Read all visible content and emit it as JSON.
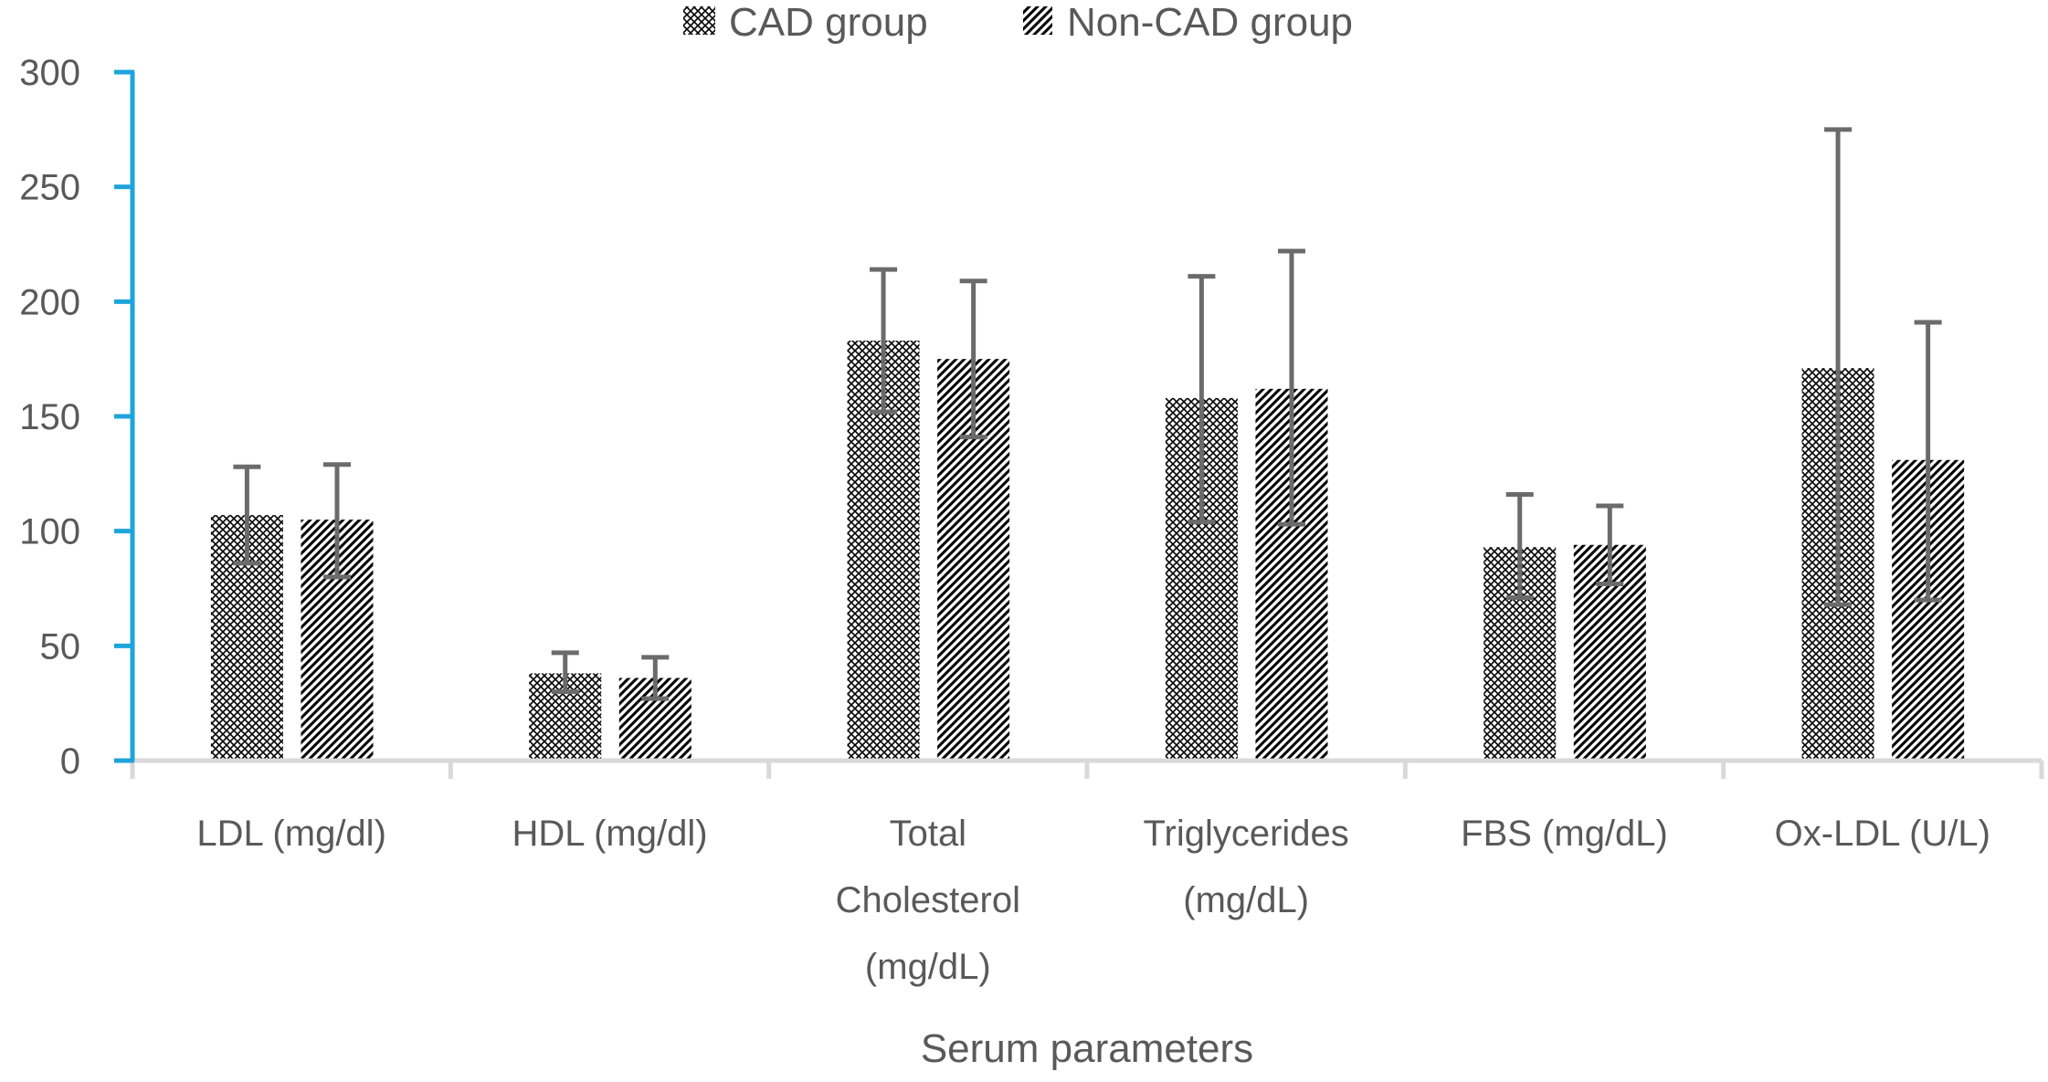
{
  "chart_data": {
    "type": "bar",
    "title": "",
    "xlabel": "Serum parameters",
    "ylabel": "",
    "ylim": [
      0,
      300
    ],
    "yticks": [
      0,
      50,
      100,
      150,
      200,
      250,
      300
    ],
    "grid": false,
    "legend_position": "top-center",
    "categories": [
      [
        "LDL (mg/dl)"
      ],
      [
        "HDL (mg/dl)"
      ],
      [
        "Total",
        "Cholesterol",
        "(mg/dL)"
      ],
      [
        "Triglycerides",
        "(mg/dL)"
      ],
      [
        "FBS (mg/dL)"
      ],
      [
        "Ox-LDL (U/L)"
      ]
    ],
    "series": [
      {
        "name": "CAD group",
        "pattern": "crosshatch",
        "values": [
          107,
          38,
          183,
          158,
          93,
          171
        ],
        "error_upper": [
          128,
          47,
          214,
          211,
          116,
          275
        ],
        "error_lower": [
          86,
          30,
          152,
          104,
          71,
          68
        ]
      },
      {
        "name": "Non-CAD group",
        "pattern": "diagonal-stripes",
        "values": [
          105,
          36,
          175,
          162,
          94,
          131
        ],
        "error_upper": [
          129,
          45,
          209,
          222,
          111,
          191
        ],
        "error_lower": [
          80,
          27,
          141,
          103,
          77,
          70
        ]
      }
    ],
    "colors": {
      "y_axis": "#1ea4dc",
      "x_axis": "#d9d9d9",
      "error_bar": "#6b6b6b",
      "text": "#595959",
      "pattern": "#000000"
    }
  }
}
